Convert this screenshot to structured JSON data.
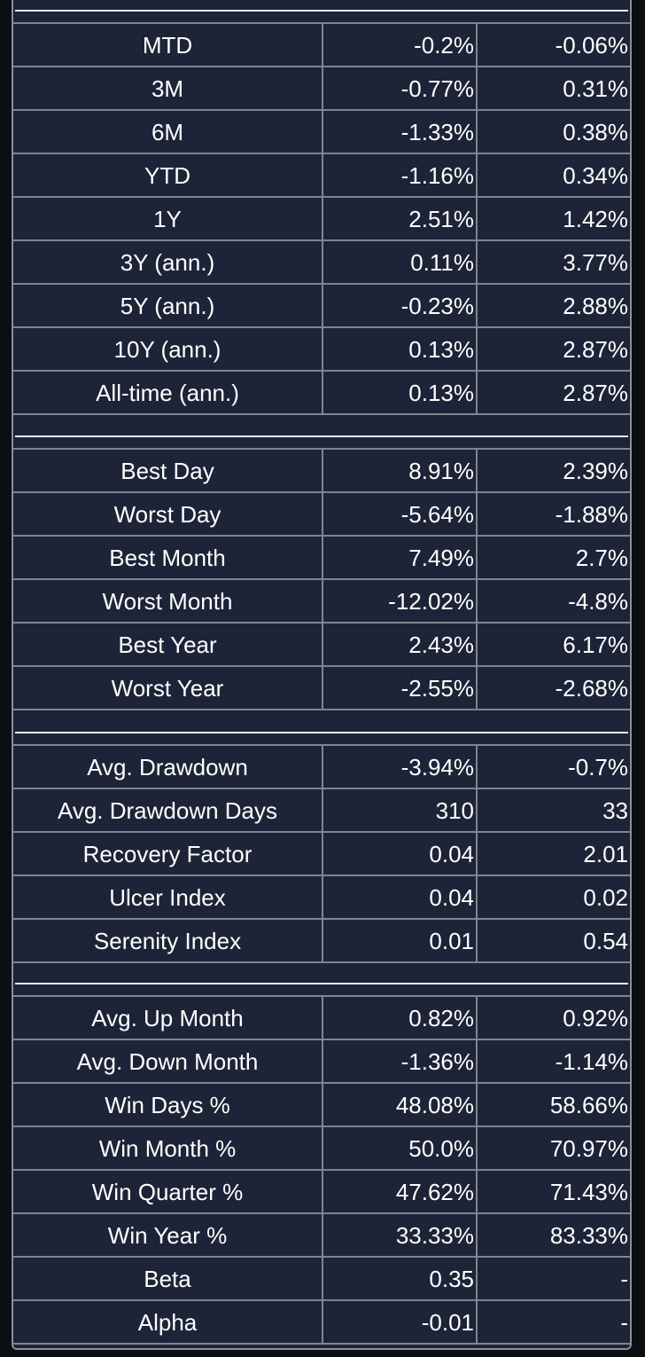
{
  "sections": [
    {
      "rows": [
        {
          "label": "MTD",
          "v1": "-0.2%",
          "v2": "-0.06%"
        },
        {
          "label": "3M",
          "v1": "-0.77%",
          "v2": "0.31%"
        },
        {
          "label": "6M",
          "v1": "-1.33%",
          "v2": "0.38%"
        },
        {
          "label": "YTD",
          "v1": "-1.16%",
          "v2": "0.34%"
        },
        {
          "label": "1Y",
          "v1": "2.51%",
          "v2": "1.42%"
        },
        {
          "label": "3Y (ann.)",
          "v1": "0.11%",
          "v2": "3.77%"
        },
        {
          "label": "5Y (ann.)",
          "v1": "-0.23%",
          "v2": "2.88%"
        },
        {
          "label": "10Y (ann.)",
          "v1": "0.13%",
          "v2": "2.87%"
        },
        {
          "label": "All-time (ann.)",
          "v1": "0.13%",
          "v2": "2.87%"
        }
      ]
    },
    {
      "rows": [
        {
          "label": "Best Day",
          "v1": "8.91%",
          "v2": "2.39%"
        },
        {
          "label": "Worst Day",
          "v1": "-5.64%",
          "v2": "-1.88%"
        },
        {
          "label": "Best Month",
          "v1": "7.49%",
          "v2": "2.7%"
        },
        {
          "label": "Worst Month",
          "v1": "-12.02%",
          "v2": "-4.8%"
        },
        {
          "label": "Best Year",
          "v1": "2.43%",
          "v2": "6.17%"
        },
        {
          "label": "Worst Year",
          "v1": "-2.55%",
          "v2": "-2.68%"
        }
      ]
    },
    {
      "rows": [
        {
          "label": "Avg. Drawdown",
          "v1": "-3.94%",
          "v2": "-0.7%"
        },
        {
          "label": "Avg. Drawdown Days",
          "v1": "310",
          "v2": "33"
        },
        {
          "label": "Recovery Factor",
          "v1": "0.04",
          "v2": "2.01"
        },
        {
          "label": "Ulcer Index",
          "v1": "0.04",
          "v2": "0.02"
        },
        {
          "label": "Serenity Index",
          "v1": "0.01",
          "v2": "0.54"
        }
      ]
    },
    {
      "rows": [
        {
          "label": "Avg. Up Month",
          "v1": "0.82%",
          "v2": "0.92%"
        },
        {
          "label": "Avg. Down Month",
          "v1": "-1.36%",
          "v2": "-1.14%"
        },
        {
          "label": "Win Days %",
          "v1": "48.08%",
          "v2": "58.66%"
        },
        {
          "label": "Win Month %",
          "v1": "50.0%",
          "v2": "70.97%"
        },
        {
          "label": "Win Quarter %",
          "v1": "47.62%",
          "v2": "71.43%"
        },
        {
          "label": "Win Year %",
          "v1": "33.33%",
          "v2": "83.33%"
        },
        {
          "label": "Beta",
          "v1": "0.35",
          "v2": "-"
        },
        {
          "label": "Alpha",
          "v1": "-0.01",
          "v2": "-"
        }
      ]
    }
  ],
  "colors": {
    "panel_background": "#1e2437",
    "page_background": "#0b0f14",
    "grid_line": "#7f8591",
    "separator_line": "#e9ecf0",
    "text": "#ffffff"
  }
}
